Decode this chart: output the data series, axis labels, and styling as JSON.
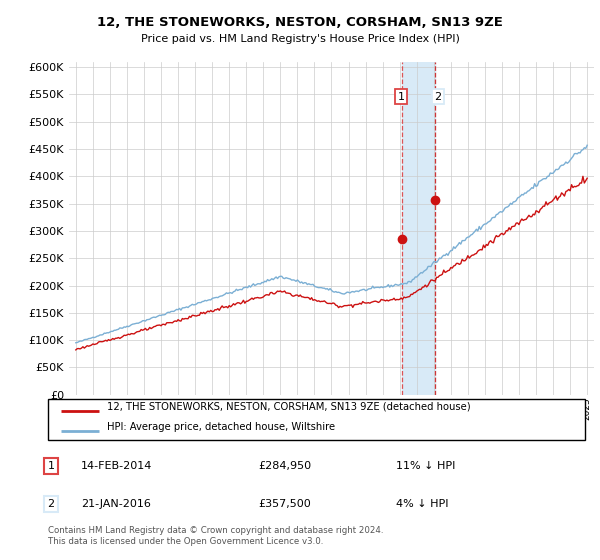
{
  "title": "12, THE STONEWORKS, NESTON, CORSHAM, SN13 9ZE",
  "subtitle": "Price paid vs. HM Land Registry's House Price Index (HPI)",
  "legend_line1": "12, THE STONEWORKS, NESTON, CORSHAM, SN13 9ZE (detached house)",
  "legend_line2": "HPI: Average price, detached house, Wiltshire",
  "transaction1_date": "14-FEB-2014",
  "transaction1_price": "£284,950",
  "transaction1_hpi": "11% ↓ HPI",
  "transaction2_date": "21-JAN-2016",
  "transaction2_price": "£357,500",
  "transaction2_hpi": "4% ↓ HPI",
  "footnote": "Contains HM Land Registry data © Crown copyright and database right 2024.\nThis data is licensed under the Open Government Licence v3.0.",
  "hpi_color": "#7bafd4",
  "price_color": "#cc1111",
  "highlight_color": "#d8eaf7",
  "vline_color": "#dd4444",
  "vline2_color": "#cc2222",
  "ylim_min": 0,
  "ylim_max": 610000,
  "yticks": [
    0,
    50000,
    100000,
    150000,
    200000,
    250000,
    300000,
    350000,
    400000,
    450000,
    500000,
    550000,
    600000
  ],
  "transaction1_x": 2014.12,
  "transaction1_y": 284950,
  "transaction2_x": 2016.05,
  "transaction2_y": 357500,
  "highlight_x_start": 2014.12,
  "highlight_x_end": 2016.05,
  "xmin": 1995,
  "xmax": 2025
}
